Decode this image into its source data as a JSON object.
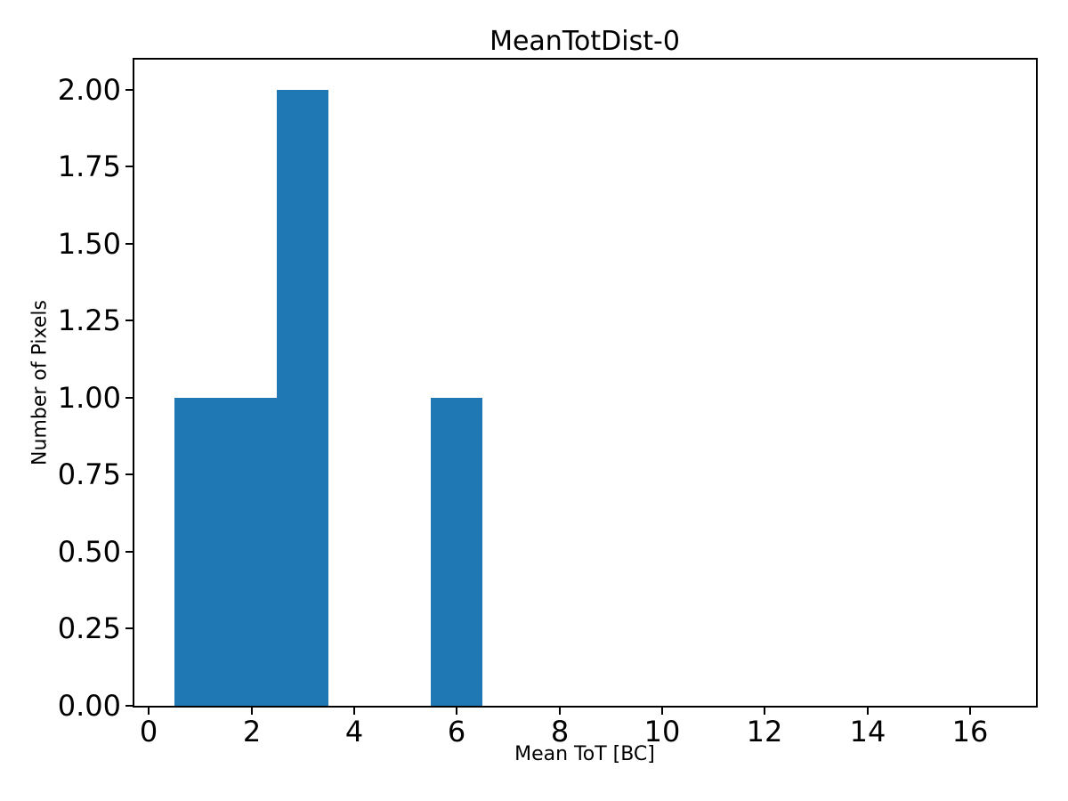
{
  "chart_data": {
    "type": "bar",
    "subtype": "histogram",
    "title": "MeanTotDist-0",
    "xlabel": "Mean ToT [BC]",
    "ylabel": "Number of Pixels",
    "xlim": [
      -0.3,
      17.3
    ],
    "ylim": [
      0,
      2.1
    ],
    "xticks": [
      0,
      2,
      4,
      6,
      8,
      10,
      12,
      14,
      16
    ],
    "xtick_labels": [
      "0",
      "2",
      "4",
      "6",
      "8",
      "10",
      "12",
      "14",
      "16"
    ],
    "yticks": [
      0,
      0.25,
      0.5,
      0.75,
      1,
      1.25,
      1.5,
      1.75,
      2
    ],
    "ytick_labels": [
      "0.00",
      "0.25",
      "0.50",
      "0.75",
      "1.00",
      "1.25",
      "1.50",
      "1.75",
      "2.00"
    ],
    "bars": [
      {
        "x0": 0.5,
        "x1": 1.5,
        "count": 1
      },
      {
        "x0": 1.5,
        "x1": 2.5,
        "count": 1
      },
      {
        "x0": 2.5,
        "x1": 3.5,
        "count": 2
      },
      {
        "x0": 5.5,
        "x1": 6.5,
        "count": 1
      }
    ],
    "bar_color": "#1f77b4",
    "axes_color": "#000000",
    "background_color": "#ffffff",
    "grid": false,
    "legend": null
  }
}
